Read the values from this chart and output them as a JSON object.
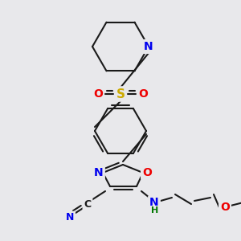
{
  "bg_color": "#e8e8eb",
  "bond_color": "#1a1a1a",
  "bond_width": 1.5,
  "atom_colors": {
    "N": "#0000ee",
    "O": "#ee0000",
    "S": "#ccaa00",
    "C": "#1a1a1a",
    "H": "#007700"
  },
  "figsize": [
    3.0,
    3.0
  ],
  "dpi": 100
}
